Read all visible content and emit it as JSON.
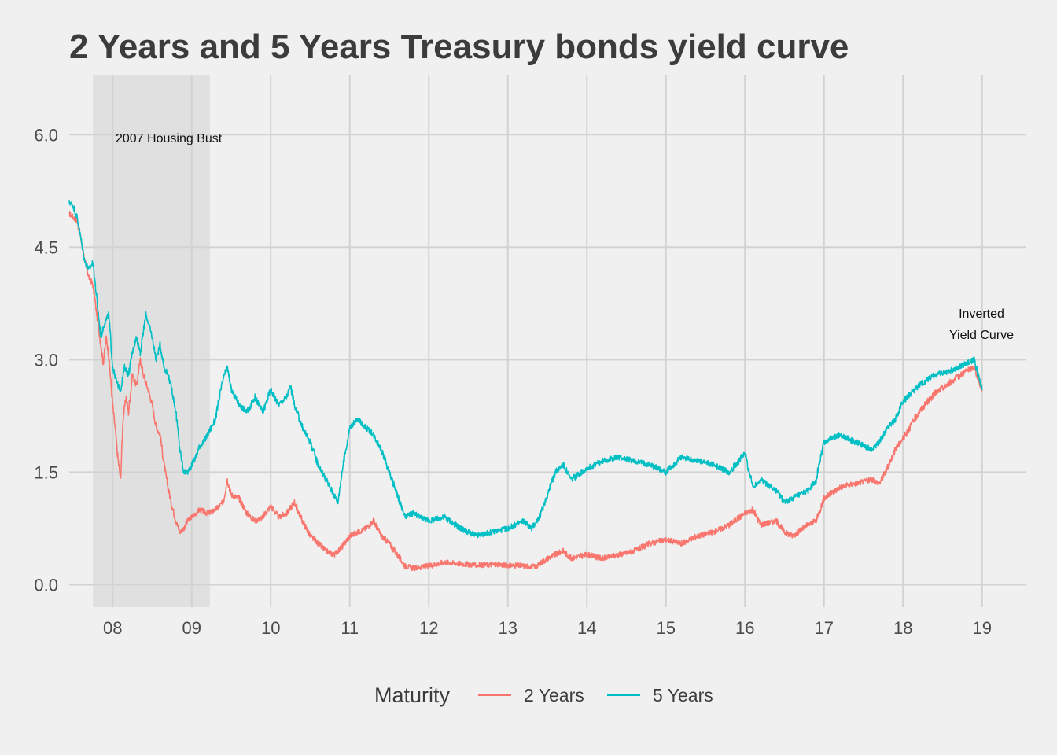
{
  "chart_data": {
    "type": "line",
    "title": "2 Years and 5 Years Treasury bonds yield curve",
    "xlabel": "",
    "ylabel": "",
    "x_range": [
      2007.45,
      2019.55
    ],
    "ylim": [
      -0.3,
      6.8
    ],
    "x_ticks": [
      {
        "value": 2008,
        "label": "08"
      },
      {
        "value": 2009,
        "label": "09"
      },
      {
        "value": 2010,
        "label": "10"
      },
      {
        "value": 2011,
        "label": "11"
      },
      {
        "value": 2012,
        "label": "12"
      },
      {
        "value": 2013,
        "label": "13"
      },
      {
        "value": 2014,
        "label": "14"
      },
      {
        "value": 2015,
        "label": "15"
      },
      {
        "value": 2016,
        "label": "16"
      },
      {
        "value": 2017,
        "label": "17"
      },
      {
        "value": 2018,
        "label": "18"
      },
      {
        "value": 2019,
        "label": "19"
      }
    ],
    "y_ticks": [
      {
        "value": 0.0,
        "label": "0.0"
      },
      {
        "value": 1.5,
        "label": "1.5"
      },
      {
        "value": 3.0,
        "label": "3.0"
      },
      {
        "value": 4.5,
        "label": "4.5"
      },
      {
        "value": 6.0,
        "label": "6.0"
      }
    ],
    "grid": true,
    "legend": {
      "title": "Maturity",
      "position": "bottom"
    },
    "shaded_region": {
      "x_start": 2007.75,
      "x_end": 2009.23,
      "label": "2007 Housing Bust",
      "color": "#e0e0e0"
    },
    "annotations": [
      {
        "lines": [
          "Inverted",
          "Yield Curve"
        ]
      }
    ],
    "series": [
      {
        "name": "2 Years",
        "color": "#f8766d",
        "x": [
          2007.45,
          2007.5,
          2007.55,
          2007.6,
          2007.65,
          2007.7,
          2007.75,
          2007.8,
          2007.85,
          2007.88,
          2007.92,
          2007.95,
          2008.0,
          2008.03,
          2008.06,
          2008.1,
          2008.13,
          2008.17,
          2008.2,
          2008.25,
          2008.3,
          2008.35,
          2008.4,
          2008.45,
          2008.5,
          2008.55,
          2008.6,
          2008.65,
          2008.7,
          2008.75,
          2008.8,
          2008.85,
          2008.9,
          2008.95,
          2009.0,
          2009.05,
          2009.1,
          2009.2,
          2009.3,
          2009.4,
          2009.45,
          2009.5,
          2009.6,
          2009.7,
          2009.8,
          2009.9,
          2010.0,
          2010.1,
          2010.2,
          2010.3,
          2010.4,
          2010.5,
          2010.6,
          2010.7,
          2010.8,
          2010.9,
          2011.0,
          2011.1,
          2011.2,
          2011.3,
          2011.4,
          2011.5,
          2011.6,
          2011.7,
          2011.8,
          2012.0,
          2012.2,
          2012.4,
          2012.6,
          2012.8,
          2013.0,
          2013.2,
          2013.35,
          2013.5,
          2013.6,
          2013.7,
          2013.8,
          2014.0,
          2014.2,
          2014.4,
          2014.6,
          2014.8,
          2015.0,
          2015.2,
          2015.4,
          2015.6,
          2015.8,
          2016.0,
          2016.1,
          2016.2,
          2016.4,
          2016.5,
          2016.6,
          2016.8,
          2016.9,
          2017.0,
          2017.2,
          2017.4,
          2017.6,
          2017.7,
          2017.8,
          2017.9,
          2018.0,
          2018.2,
          2018.4,
          2018.6,
          2018.8,
          2018.9,
          2019.0
        ],
        "values": [
          4.95,
          4.9,
          4.85,
          4.6,
          4.3,
          4.1,
          4.0,
          3.6,
          3.2,
          2.95,
          3.3,
          3.05,
          2.4,
          2.1,
          1.75,
          1.4,
          2.2,
          2.5,
          2.3,
          2.8,
          2.65,
          3.0,
          2.75,
          2.6,
          2.4,
          2.1,
          2.0,
          1.6,
          1.3,
          1.05,
          0.85,
          0.7,
          0.75,
          0.85,
          0.9,
          0.95,
          1.0,
          0.95,
          1.0,
          1.1,
          1.4,
          1.2,
          1.15,
          0.95,
          0.85,
          0.9,
          1.05,
          0.9,
          0.95,
          1.1,
          0.85,
          0.65,
          0.55,
          0.45,
          0.4,
          0.5,
          0.65,
          0.7,
          0.75,
          0.85,
          0.65,
          0.55,
          0.4,
          0.25,
          0.22,
          0.25,
          0.3,
          0.28,
          0.26,
          0.27,
          0.26,
          0.25,
          0.24,
          0.35,
          0.4,
          0.45,
          0.35,
          0.4,
          0.35,
          0.4,
          0.45,
          0.55,
          0.6,
          0.55,
          0.65,
          0.7,
          0.8,
          0.95,
          1.0,
          0.8,
          0.85,
          0.7,
          0.65,
          0.8,
          0.85,
          1.15,
          1.3,
          1.35,
          1.4,
          1.35,
          1.55,
          1.8,
          1.95,
          2.3,
          2.55,
          2.7,
          2.85,
          2.9,
          2.6
        ]
      },
      {
        "name": "5 Years",
        "color": "#00bfc4",
        "x": [
          2007.45,
          2007.5,
          2007.55,
          2007.6,
          2007.65,
          2007.7,
          2007.75,
          2007.8,
          2007.85,
          2007.9,
          2007.95,
          2008.0,
          2008.05,
          2008.1,
          2008.15,
          2008.2,
          2008.25,
          2008.3,
          2008.35,
          2008.42,
          2008.45,
          2008.5,
          2008.55,
          2008.6,
          2008.65,
          2008.7,
          2008.75,
          2008.8,
          2008.85,
          2008.9,
          2008.95,
          2009.0,
          2009.05,
          2009.1,
          2009.15,
          2009.2,
          2009.3,
          2009.35,
          2009.4,
          2009.45,
          2009.5,
          2009.6,
          2009.7,
          2009.8,
          2009.9,
          2010.0,
          2010.1,
          2010.2,
          2010.25,
          2010.3,
          2010.4,
          2010.5,
          2010.6,
          2010.7,
          2010.8,
          2010.85,
          2010.9,
          2011.0,
          2011.1,
          2011.2,
          2011.3,
          2011.4,
          2011.5,
          2011.6,
          2011.7,
          2011.8,
          2012.0,
          2012.2,
          2012.4,
          2012.6,
          2012.8,
          2013.0,
          2013.2,
          2013.3,
          2013.4,
          2013.5,
          2013.6,
          2013.7,
          2013.8,
          2014.0,
          2014.2,
          2014.4,
          2014.6,
          2014.8,
          2015.0,
          2015.2,
          2015.4,
          2015.6,
          2015.8,
          2016.0,
          2016.1,
          2016.2,
          2016.4,
          2016.5,
          2016.6,
          2016.8,
          2016.9,
          2017.0,
          2017.2,
          2017.4,
          2017.6,
          2017.7,
          2017.8,
          2017.9,
          2018.0,
          2018.2,
          2018.4,
          2018.6,
          2018.8,
          2018.9,
          2019.0
        ],
        "values": [
          5.1,
          5.05,
          4.9,
          4.6,
          4.3,
          4.2,
          4.3,
          3.8,
          3.3,
          3.5,
          3.6,
          2.9,
          2.7,
          2.6,
          2.9,
          2.8,
          3.1,
          3.3,
          3.1,
          3.6,
          3.5,
          3.3,
          3.0,
          3.2,
          2.9,
          2.8,
          2.6,
          2.3,
          1.8,
          1.5,
          1.5,
          1.6,
          1.7,
          1.85,
          1.9,
          2.0,
          2.2,
          2.5,
          2.75,
          2.9,
          2.6,
          2.4,
          2.3,
          2.5,
          2.3,
          2.6,
          2.4,
          2.5,
          2.65,
          2.4,
          2.1,
          1.9,
          1.6,
          1.4,
          1.2,
          1.1,
          1.5,
          2.1,
          2.2,
          2.1,
          2.0,
          1.8,
          1.5,
          1.2,
          0.9,
          0.95,
          0.85,
          0.9,
          0.75,
          0.65,
          0.7,
          0.75,
          0.85,
          0.75,
          0.9,
          1.2,
          1.5,
          1.6,
          1.4,
          1.55,
          1.65,
          1.7,
          1.65,
          1.6,
          1.5,
          1.7,
          1.65,
          1.6,
          1.5,
          1.75,
          1.3,
          1.4,
          1.25,
          1.1,
          1.15,
          1.25,
          1.4,
          1.9,
          2.0,
          1.9,
          1.8,
          1.9,
          2.1,
          2.2,
          2.45,
          2.65,
          2.8,
          2.85,
          2.95,
          3.0,
          2.6
        ]
      }
    ]
  }
}
